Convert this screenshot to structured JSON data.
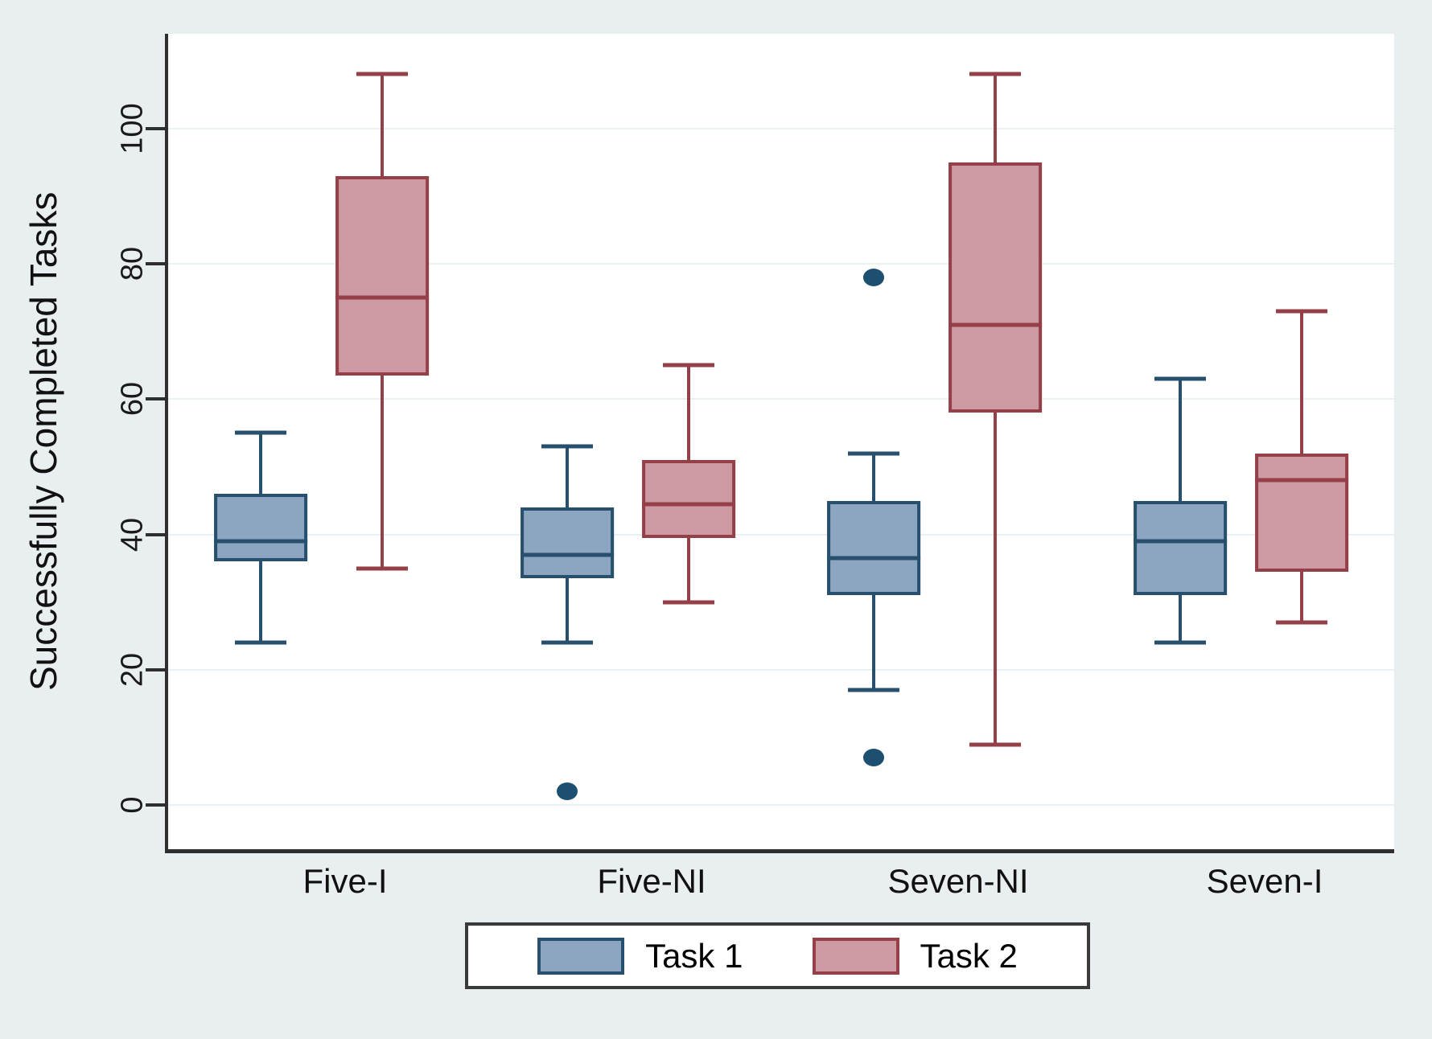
{
  "page": {
    "background_color": "#e9eef1",
    "plot_background_color": "#ffffff",
    "gridline_color": "#e7f1f6",
    "axis_color": "#2f2f2f"
  },
  "chart_data": {
    "type": "boxplot",
    "title": "",
    "xlabel": "",
    "ylabel": "Successfully Completed Tasks",
    "categories": [
      "Five-I",
      "Five-NI",
      "Seven-NI",
      "Seven-I"
    ],
    "yticks": [
      0,
      20,
      40,
      60,
      80,
      100
    ],
    "ylim": [
      -6.5,
      114
    ],
    "grid": true,
    "legend_position": "bottom-center",
    "outlier_color": "#1d4f70",
    "series": [
      {
        "name": "Task 1",
        "fill_color": "#8ca5c0",
        "border_color": "#27506e",
        "boxes": [
          {
            "category": "Five-I",
            "whisker_low": 24,
            "q1": 36,
            "median": 39,
            "q3": 46,
            "whisker_high": 55,
            "outliers": []
          },
          {
            "category": "Five-NI",
            "whisker_low": 24,
            "q1": 33.5,
            "median": 37,
            "q3": 44,
            "whisker_high": 53,
            "outliers": [
              2
            ]
          },
          {
            "category": "Seven-NI",
            "whisker_low": 17,
            "q1": 31,
            "median": 36.5,
            "q3": 45,
            "whisker_high": 52,
            "outliers": [
              78,
              7
            ]
          },
          {
            "category": "Seven-I",
            "whisker_low": 24,
            "q1": 31,
            "median": 39,
            "q3": 45,
            "whisker_high": 63,
            "outliers": []
          }
        ]
      },
      {
        "name": "Task 2",
        "fill_color": "#cd99a2",
        "border_color": "#953f49",
        "boxes": [
          {
            "category": "Five-I",
            "whisker_low": 35,
            "q1": 63.5,
            "median": 75,
            "q3": 93,
            "whisker_high": 108,
            "outliers": []
          },
          {
            "category": "Five-NI",
            "whisker_low": 30,
            "q1": 39.5,
            "median": 44.5,
            "q3": 51,
            "whisker_high": 65,
            "outliers": []
          },
          {
            "category": "Seven-NI",
            "whisker_low": 9,
            "q1": 58,
            "median": 71,
            "q3": 95,
            "whisker_high": 108,
            "outliers": []
          },
          {
            "category": "Seven-I",
            "whisker_low": 27,
            "q1": 34.5,
            "median": 48,
            "q3": 52,
            "whisker_high": 73,
            "outliers": []
          }
        ]
      }
    ]
  }
}
